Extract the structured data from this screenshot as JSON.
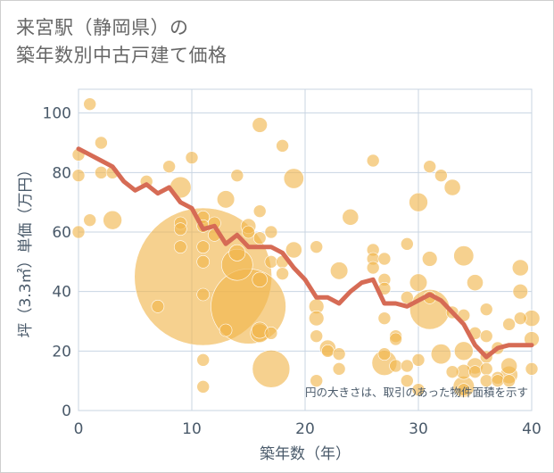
{
  "title_line1": "来宮駅（静岡県）の",
  "title_line2": "築年数別中古戸建て価格",
  "chart_data": {
    "type": "scatter",
    "title": "来宮駅（静岡県）の築年数別中古戸建て価格",
    "xlabel": "築年数（年）",
    "ylabel": "坪（3.3㎡）単価（万円）",
    "xlim": [
      0,
      40
    ],
    "ylim": [
      0,
      108
    ],
    "x_ticks": [
      0,
      10,
      20,
      30,
      40
    ],
    "y_ticks": [
      0,
      20,
      40,
      60,
      80,
      100
    ],
    "grid": true,
    "annotation": "円の大きさは、取引のあった物件面積を示す",
    "colors": {
      "bubble": "#f0b54a",
      "line": "#d66b55",
      "grid": "#c8d4e2",
      "axis_text": "#4a5a6a"
    },
    "scatter_series": {
      "points": [
        [
          0,
          86,
          1
        ],
        [
          0,
          79,
          1
        ],
        [
          0,
          60,
          1
        ],
        [
          1,
          103,
          1
        ],
        [
          1,
          64,
          1
        ],
        [
          2,
          90,
          1
        ],
        [
          2,
          80,
          1
        ],
        [
          3,
          80,
          1
        ],
        [
          3,
          64,
          1.5
        ],
        [
          6,
          77,
          1
        ],
        [
          7,
          35,
          1
        ],
        [
          8,
          82,
          1
        ],
        [
          9,
          75,
          1.7
        ],
        [
          9,
          63,
          1
        ],
        [
          9,
          61,
          1
        ],
        [
          9,
          55,
          1
        ],
        [
          10,
          85,
          1
        ],
        [
          11,
          65,
          1
        ],
        [
          11,
          62,
          1
        ],
        [
          11,
          55,
          1
        ],
        [
          11,
          50,
          1
        ],
        [
          11,
          45,
          11
        ],
        [
          11,
          39,
          1
        ],
        [
          11,
          17,
          1
        ],
        [
          11,
          8,
          1
        ],
        [
          12,
          63,
          1
        ],
        [
          12,
          59,
          1
        ],
        [
          13,
          71,
          1.4
        ],
        [
          13,
          27,
          1
        ],
        [
          14,
          79,
          1
        ],
        [
          14,
          53,
          1.3
        ],
        [
          14,
          49,
          2.5
        ],
        [
          15,
          62,
          1.2
        ],
        [
          15,
          60,
          1
        ],
        [
          15,
          35,
          6
        ],
        [
          16,
          96,
          1.2
        ],
        [
          16,
          67,
          1
        ],
        [
          16,
          58,
          1
        ],
        [
          16,
          44,
          1.2
        ],
        [
          16,
          27,
          1.3
        ],
        [
          16,
          26,
          1.5
        ],
        [
          17,
          60,
          1
        ],
        [
          17,
          50,
          1
        ],
        [
          17,
          26,
          1
        ],
        [
          17,
          14,
          3
        ],
        [
          18,
          89,
          1
        ],
        [
          18,
          50,
          1
        ],
        [
          18,
          46,
          1
        ],
        [
          19,
          78,
          1.6
        ],
        [
          19,
          54,
          1.3
        ],
        [
          21,
          55,
          1
        ],
        [
          21,
          35,
          1.2
        ],
        [
          21,
          31,
          1.2
        ],
        [
          21,
          25,
          1
        ],
        [
          21,
          10,
          1
        ],
        [
          22,
          21,
          1.3
        ],
        [
          22,
          20,
          1
        ],
        [
          23,
          47,
          1.4
        ],
        [
          23,
          19,
          1
        ],
        [
          23,
          14,
          1
        ],
        [
          24,
          65,
          1.3
        ],
        [
          26,
          84,
          1
        ],
        [
          26,
          54,
          1
        ],
        [
          26,
          51,
          1
        ],
        [
          26,
          48,
          1
        ],
        [
          27,
          51,
          1
        ],
        [
          27,
          44,
          1
        ],
        [
          27,
          41,
          1
        ],
        [
          27,
          31,
          1
        ],
        [
          27,
          19,
          1
        ],
        [
          27,
          16,
          2
        ],
        [
          28,
          25,
          1
        ],
        [
          28,
          24,
          1
        ],
        [
          28,
          15,
          1
        ],
        [
          29,
          56,
          1
        ],
        [
          29,
          38,
          1
        ],
        [
          29,
          15,
          1
        ],
        [
          29,
          10,
          1
        ],
        [
          30,
          70,
          1.5
        ],
        [
          30,
          43,
          1.4
        ],
        [
          30,
          17,
          1
        ],
        [
          30,
          7,
          1
        ],
        [
          31,
          82,
          1
        ],
        [
          31,
          51,
          1.2
        ],
        [
          31,
          38,
          1
        ],
        [
          31,
          34,
          3.2
        ],
        [
          32,
          79,
          1
        ],
        [
          32,
          19,
          1.6
        ],
        [
          33,
          75,
          1.3
        ],
        [
          33,
          33,
          1
        ],
        [
          33,
          13,
          1
        ],
        [
          34,
          52,
          1.6
        ],
        [
          34,
          32,
          1
        ],
        [
          34,
          20,
          1.5
        ],
        [
          34,
          13,
          1.2
        ],
        [
          34,
          8,
          1.7
        ],
        [
          34,
          7,
          1
        ],
        [
          35,
          43,
          1.3
        ],
        [
          35,
          26,
          1
        ],
        [
          35,
          15,
          1.3
        ],
        [
          35,
          13,
          1
        ],
        [
          36,
          34,
          1
        ],
        [
          36,
          25,
          1
        ],
        [
          36,
          18,
          1
        ],
        [
          36,
          14,
          1
        ],
        [
          36,
          10,
          1
        ],
        [
          37,
          11,
          1
        ],
        [
          37,
          10,
          1
        ],
        [
          37,
          21,
          1
        ],
        [
          38,
          29,
          1
        ],
        [
          38,
          15,
          1.3
        ],
        [
          38,
          12,
          1.4
        ],
        [
          38,
          10,
          1
        ],
        [
          39,
          48,
          1.3
        ],
        [
          39,
          40,
          1.2
        ],
        [
          39,
          31,
          1
        ],
        [
          40,
          31,
          1.3
        ],
        [
          40,
          24,
          1.2
        ],
        [
          40,
          14,
          1
        ]
      ]
    },
    "line_series": {
      "x": [
        0,
        1,
        2,
        3,
        4,
        5,
        6,
        7,
        8,
        9,
        10,
        11,
        12,
        13,
        14,
        15,
        16,
        17,
        18,
        19,
        20,
        21,
        22,
        23,
        24,
        25,
        26,
        27,
        28,
        29,
        30,
        31,
        32,
        33,
        34,
        35,
        36,
        37,
        38,
        39,
        40
      ],
      "y": [
        88,
        86,
        84,
        82,
        77,
        74,
        76,
        73,
        75,
        70,
        68,
        61,
        62,
        56,
        59,
        55,
        55,
        55,
        53,
        48,
        44,
        38,
        38,
        36,
        40,
        43,
        44,
        36,
        36,
        35,
        37,
        39,
        37,
        33,
        29,
        22,
        18,
        21,
        22,
        22,
        22
      ]
    }
  }
}
